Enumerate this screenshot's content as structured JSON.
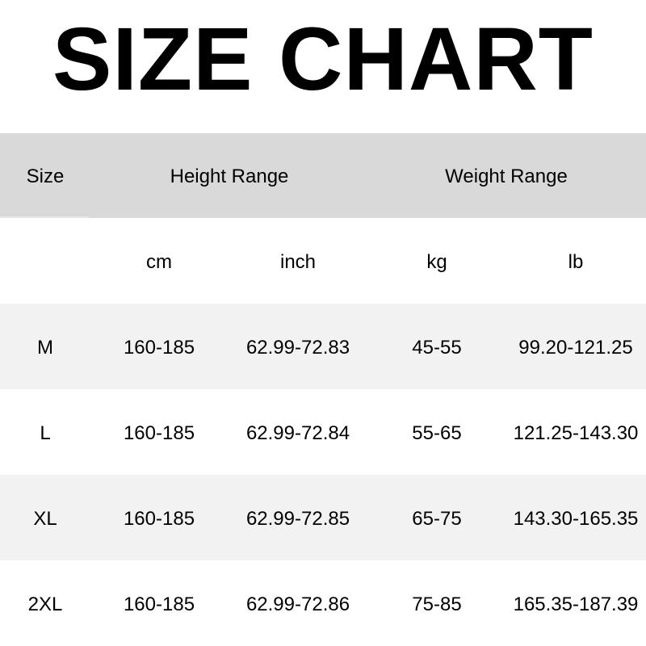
{
  "title": "SIZE CHART",
  "colors": {
    "header_bg": "#d9d9d9",
    "stripe_bg": "#f2f2f2",
    "row_bg": "#ffffff"
  },
  "header": {
    "size": "Size",
    "height_range": "Height Range",
    "weight_range": "Weight Range"
  },
  "units": {
    "cm": "cm",
    "inch": "inch",
    "kg": "kg",
    "lb": "lb"
  },
  "rows": [
    {
      "size": "M",
      "cm": "160-185",
      "inch": "62.99-72.83",
      "kg": "45-55",
      "lb": "99.20-121.25"
    },
    {
      "size": "L",
      "cm": "160-185",
      "inch": "62.99-72.84",
      "kg": "55-65",
      "lb": "121.25-143.30"
    },
    {
      "size": "XL",
      "cm": "160-185",
      "inch": "62.99-72.85",
      "kg": "65-75",
      "lb": "143.30-165.35"
    },
    {
      "size": "2XL",
      "cm": "160-185",
      "inch": "62.99-72.86",
      "kg": "75-85",
      "lb": "165.35-187.39"
    }
  ]
}
